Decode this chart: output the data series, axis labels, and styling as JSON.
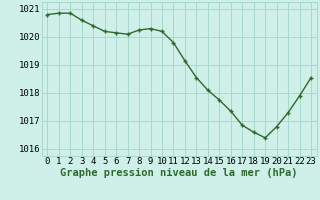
{
  "hours": [
    0,
    1,
    2,
    3,
    4,
    5,
    6,
    7,
    8,
    9,
    10,
    11,
    12,
    13,
    14,
    15,
    16,
    17,
    18,
    19,
    20,
    21,
    22,
    23
  ],
  "pressure": [
    1020.8,
    1020.85,
    1020.85,
    1020.6,
    1020.4,
    1020.2,
    1020.15,
    1020.1,
    1020.25,
    1020.3,
    1020.2,
    1019.8,
    1019.15,
    1018.55,
    1018.1,
    1017.75,
    1017.35,
    1016.85,
    1016.6,
    1016.4,
    1016.8,
    1017.3,
    1017.9,
    1018.55
  ],
  "line_color": "#2d6a2d",
  "marker_color": "#2d6a2d",
  "bg_color": "#cff0e8",
  "grid_color": "#a8d8ce",
  "xlabel": "Graphe pression niveau de la mer (hPa)",
  "ylim": [
    1015.75,
    1021.25
  ],
  "yticks": [
    1016,
    1017,
    1018,
    1019,
    1020,
    1021
  ],
  "xticks": [
    0,
    1,
    2,
    3,
    4,
    5,
    6,
    7,
    8,
    9,
    10,
    11,
    12,
    13,
    14,
    15,
    16,
    17,
    18,
    19,
    20,
    21,
    22,
    23
  ],
  "xlabel_fontsize": 7.5,
  "tick_fontsize": 6.5,
  "line_width": 1.0,
  "marker_size": 3.5
}
